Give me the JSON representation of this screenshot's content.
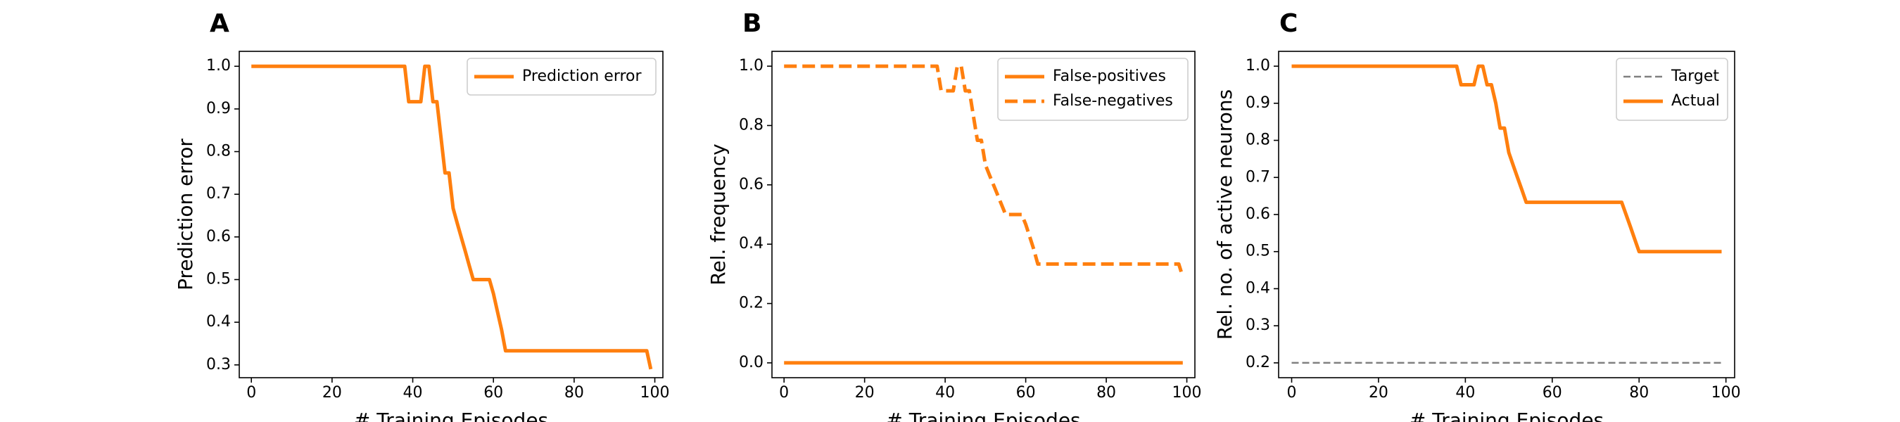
{
  "colors": {
    "orange": "#ff7f0e",
    "gray": "#808080",
    "axis": "#000000",
    "legend_edge": "#cccccc"
  },
  "charts": [
    {
      "letter": "A",
      "type": "line",
      "xlabel": "# Training Episodes",
      "ylabel": "Prediction error",
      "xlim": [
        -3,
        102
      ],
      "ylim": [
        0.27,
        1.035
      ],
      "xticks": [
        "0",
        "20",
        "40",
        "60",
        "80",
        "100"
      ],
      "yticks": [
        "0.3",
        "0.4",
        "0.5",
        "0.6",
        "0.7",
        "0.8",
        "0.9",
        "1.0"
      ],
      "legend_position": "top-right",
      "series": [
        {
          "name": "Prediction error",
          "color_key": "orange",
          "style": "solid",
          "x": [
            0,
            38,
            39,
            42,
            43,
            44,
            45,
            46,
            47,
            48,
            49,
            50,
            51,
            52,
            53,
            54,
            55,
            56,
            57,
            58,
            59,
            60,
            61,
            62,
            63,
            64,
            98,
            99
          ],
          "y": [
            1.0,
            1.0,
            0.917,
            0.917,
            1.0,
            1.0,
            0.917,
            0.917,
            0.833,
            0.75,
            0.75,
            0.667,
            0.633,
            0.6,
            0.567,
            0.533,
            0.5,
            0.5,
            0.5,
            0.5,
            0.5,
            0.467,
            0.425,
            0.383,
            0.333,
            0.333,
            0.333,
            0.29
          ]
        }
      ]
    },
    {
      "letter": "B",
      "type": "line",
      "xlabel": "# Training Episodes",
      "ylabel": "Rel. frequency",
      "xlim": [
        -3,
        102
      ],
      "ylim": [
        -0.05,
        1.05
      ],
      "xticks": [
        "0",
        "20",
        "40",
        "60",
        "80",
        "100"
      ],
      "yticks": [
        "0.0",
        "0.2",
        "0.4",
        "0.6",
        "0.8",
        "1.0"
      ],
      "legend_position": "top-right",
      "series": [
        {
          "name": "False-positives",
          "color_key": "orange",
          "style": "solid",
          "x": [
            0,
            99
          ],
          "y": [
            0.0,
            0.0
          ]
        },
        {
          "name": "False-negatives",
          "color_key": "orange",
          "style": "dashed",
          "x": [
            0,
            38,
            39,
            42,
            43,
            44,
            45,
            46,
            47,
            48,
            49,
            50,
            51,
            52,
            53,
            54,
            55,
            56,
            57,
            58,
            59,
            60,
            61,
            62,
            63,
            64,
            98,
            99
          ],
          "y": [
            1.0,
            1.0,
            0.917,
            0.917,
            1.0,
            1.0,
            0.917,
            0.917,
            0.833,
            0.75,
            0.75,
            0.667,
            0.633,
            0.6,
            0.567,
            0.533,
            0.5,
            0.5,
            0.5,
            0.5,
            0.5,
            0.467,
            0.425,
            0.383,
            0.333,
            0.333,
            0.333,
            0.29
          ]
        }
      ]
    },
    {
      "letter": "C",
      "type": "line",
      "xlabel": "# Training Episodes",
      "ylabel": "Rel. no. of active neurons",
      "xlim": [
        -3,
        102
      ],
      "ylim": [
        0.16,
        1.04
      ],
      "xticks": [
        "0",
        "20",
        "40",
        "60",
        "80",
        "100"
      ],
      "yticks": [
        "0.2",
        "0.3",
        "0.4",
        "0.5",
        "0.6",
        "0.7",
        "0.8",
        "0.9",
        "1.0"
      ],
      "legend_position": "top-right",
      "series": [
        {
          "name": "Target",
          "color_key": "gray",
          "style": "dashed-thin",
          "x": [
            0,
            99
          ],
          "y": [
            0.2,
            0.2
          ]
        },
        {
          "name": "Actual",
          "color_key": "orange",
          "style": "solid",
          "x": [
            0,
            38,
            39,
            42,
            43,
            44,
            45,
            46,
            47,
            48,
            49,
            50,
            51,
            52,
            53,
            54,
            55,
            76,
            77,
            78,
            79,
            80,
            99
          ],
          "y": [
            1.0,
            1.0,
            0.95,
            0.95,
            1.0,
            1.0,
            0.95,
            0.95,
            0.9,
            0.833,
            0.833,
            0.767,
            0.733,
            0.7,
            0.667,
            0.633,
            0.633,
            0.633,
            0.6,
            0.567,
            0.533,
            0.5,
            0.5
          ]
        }
      ]
    }
  ]
}
